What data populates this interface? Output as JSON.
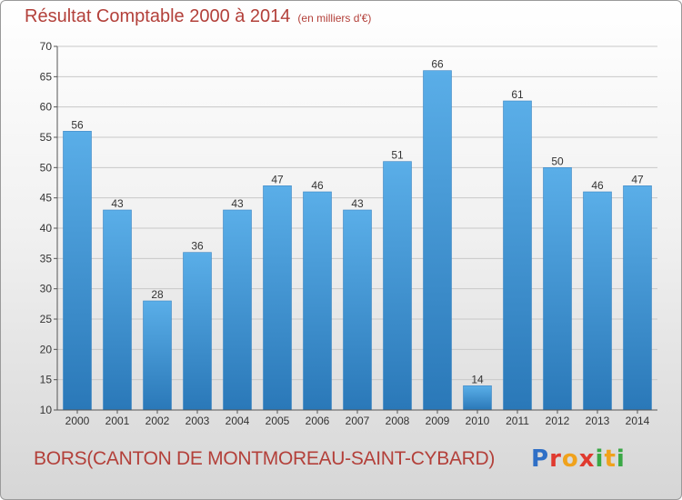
{
  "header": {
    "title": "Résultat Comptable 2000 à 2014",
    "subtitle": "(en milliers d'€)"
  },
  "footer": {
    "commune": "BORS(CANTON DE MONTMOREAU-SAINT-CYBARD)",
    "brand": "Proxiti"
  },
  "colors": {
    "bar_top": "#5aaee8",
    "bar_bottom": "#2a78b8",
    "title": "#b3403a"
  },
  "chart_data": {
    "type": "bar",
    "title": "Résultat Comptable 2000 à 2014",
    "subtitle": "(en milliers d'€)",
    "categories": [
      "2000",
      "2001",
      "2002",
      "2003",
      "2004",
      "2005",
      "2006",
      "2007",
      "2008",
      "2009",
      "2010",
      "2011",
      "2012",
      "2013",
      "2014"
    ],
    "values": [
      56,
      43,
      28,
      36,
      43,
      47,
      46,
      43,
      51,
      66,
      14,
      61,
      50,
      46,
      47
    ],
    "ylim": [
      10,
      70
    ],
    "yticks": [
      10,
      15,
      20,
      25,
      30,
      35,
      40,
      45,
      50,
      55,
      60,
      65,
      70
    ],
    "grid": true,
    "data_labels": true
  }
}
